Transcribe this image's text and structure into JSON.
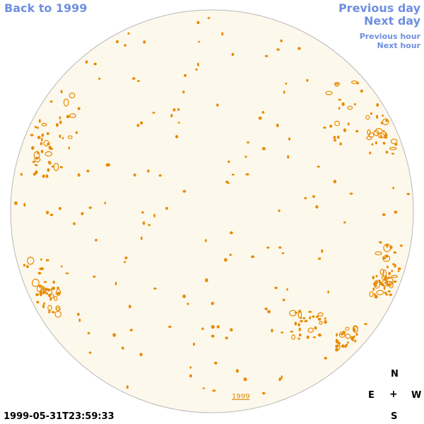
{
  "nav": {
    "back_label": "Back to 1999",
    "previous_day_label": "Previous day",
    "next_day_label": "Next day",
    "previous_hour_label": "Previous hour",
    "next_hour_label": "Next hour"
  },
  "compass": {
    "north": "N",
    "east": "E",
    "center": "+",
    "west": "W",
    "south": "S"
  },
  "timestamp": "1999-05-31T23:59:33",
  "year_label": "1999",
  "colors": {
    "link": "#6f8fe0",
    "disk_fill": "#fdf8ec",
    "disk_outline": "#b8b8b8",
    "contour": "#e88a00"
  }
}
